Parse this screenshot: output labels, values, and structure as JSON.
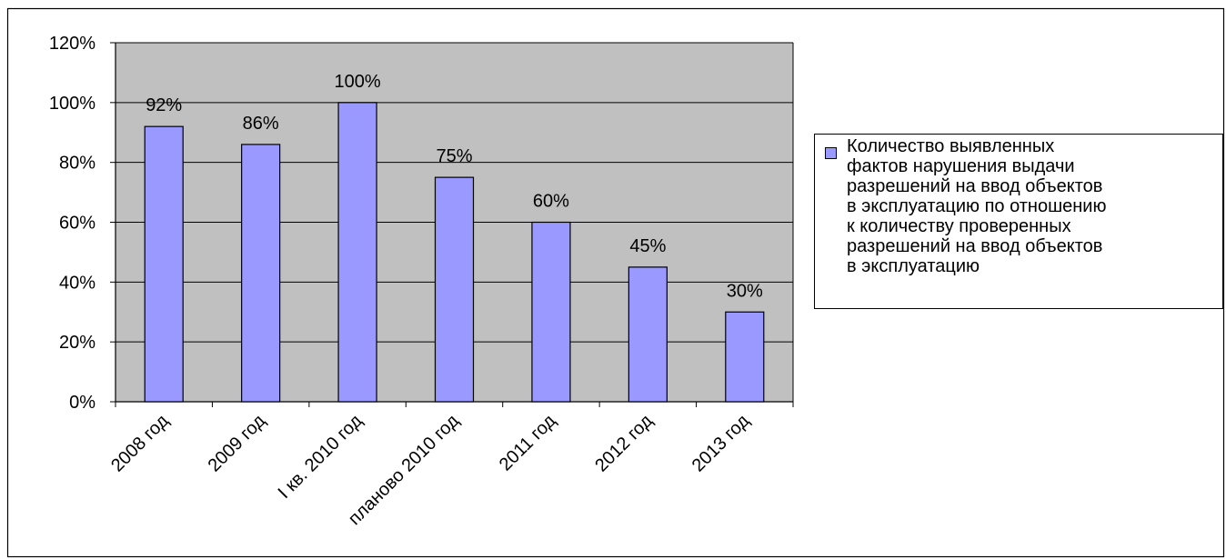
{
  "chart_data": {
    "type": "bar",
    "categories": [
      "2008 год",
      "2009 год",
      "I кв. 2010 год",
      "планово 2010 год",
      "2011 год",
      "2012 год",
      "2013 год"
    ],
    "series": [
      {
        "name": "Количество выявленных фактов нарушения  выдачи разрешений на ввод объектов в эксплуатацию по отношению к количеству проверенных разрешений на ввод объектов в эксплуатацию",
        "values": [
          92,
          86,
          100,
          75,
          60,
          45,
          30
        ]
      }
    ],
    "data_labels": [
      "92%",
      "86%",
      "100%",
      "75%",
      "60%",
      "45%",
      "30%"
    ],
    "yticks": [
      "0%",
      "20%",
      "40%",
      "60%",
      "80%",
      "100%",
      "120%"
    ],
    "ylim": [
      0,
      120
    ],
    "grid": true,
    "legend_position": "right",
    "colors": {
      "bar": "#9999ff",
      "plot_bg": "#c0c0c0",
      "grid": "#000000"
    }
  },
  "legend": {
    "text": "Количество выявленных\nфактов нарушения  выдачи\nразрешений на ввод объектов\nв эксплуатацию по отношению\nк количеству проверенных\nразрешений на ввод объектов\nв эксплуатацию"
  }
}
